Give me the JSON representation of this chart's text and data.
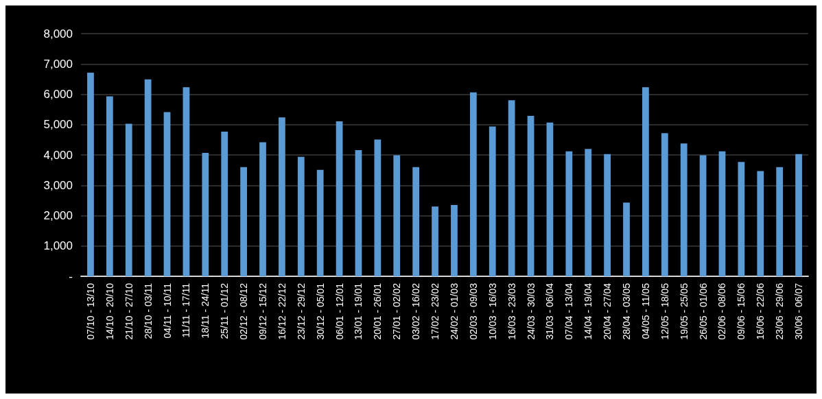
{
  "chart_data": {
    "type": "bar",
    "categories": [
      "07/10 - 13/10",
      "14/10 - 20/10",
      "21/10 - 27/10",
      "28/10 - 03/11",
      "04/11 - 10/11",
      "11/11 - 17/11",
      "18/11 - 24/11",
      "25/11 - 01/12",
      "02/12 - 08/12",
      "09/12 - 15/12",
      "16/12 - 22/12",
      "23/12 - 29/12",
      "30/12 - 05/01",
      "06/01 - 12/01",
      "13/01 - 19/01",
      "20/01 - 26/01",
      "27/01 - 02/02",
      "03/02 - 16/02",
      "17/02 - 23/02",
      "24/02 - 01/03",
      "02/03 - 09/03",
      "10/03 - 16/03",
      "16/03 - 23/03",
      "24/03 - 30/03",
      "31/03 - 06/04",
      "07/04 - 13/04",
      "14/04 - 19/04",
      "20/04 - 27/04",
      "28/04 - 03/05",
      "04/05 - 11/05",
      "12/05 - 18/05",
      "19/05 - 25/05",
      "26/05 - 01/06",
      "02/06 - 08/06",
      "09/06 - 15/06",
      "16/06 - 22/06",
      "23/06 - 29/06",
      "30/06 - 06/07"
    ],
    "values": [
      6710,
      5930,
      5030,
      6490,
      5410,
      6230,
      4070,
      4770,
      3600,
      4420,
      5240,
      3940,
      3510,
      5110,
      4160,
      4510,
      3990,
      3600,
      2300,
      2350,
      6060,
      4940,
      5800,
      5290,
      5070,
      4120,
      4200,
      4030,
      2430,
      6230,
      4720,
      4380,
      3990,
      4120,
      3770,
      3470,
      3600,
      4030
    ],
    "color": "#5b9bd5",
    "ylim": [
      0,
      8000
    ],
    "yticks": [
      {
        "value": 0,
        "label": "-"
      },
      {
        "value": 1000,
        "label": "1,000"
      },
      {
        "value": 2000,
        "label": "2,000"
      },
      {
        "value": 3000,
        "label": "3,000"
      },
      {
        "value": 4000,
        "label": "4,000"
      },
      {
        "value": 5000,
        "label": "5,000"
      },
      {
        "value": 6000,
        "label": "6,000"
      },
      {
        "value": 7000,
        "label": "7,000"
      },
      {
        "value": 8000,
        "label": "8,000"
      }
    ],
    "grid": "y"
  }
}
